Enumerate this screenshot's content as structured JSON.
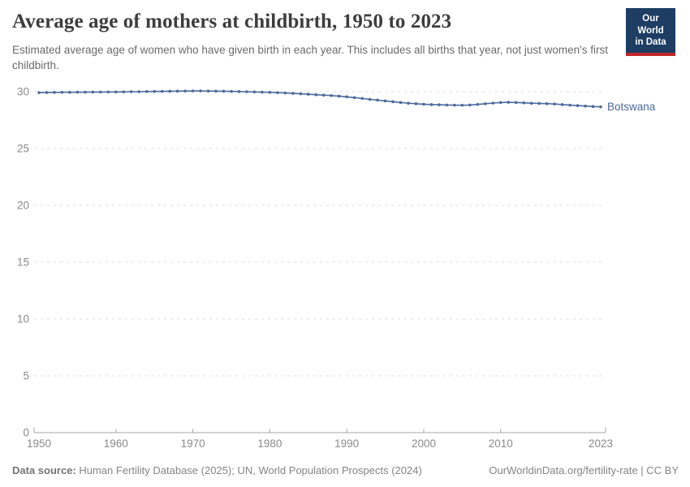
{
  "header": {
    "title": "Average age of mothers at childbirth, 1950 to 2023",
    "subtitle": "Estimated average age of women who have given birth in each year. This includes all births that year, not just women's first childbirth.",
    "logo": {
      "line1": "Our World",
      "line2": "in Data"
    }
  },
  "footer": {
    "datasource_label": "Data source:",
    "datasource_text": " Human Fertility Database (2025); UN, World Population Prospects (2024)",
    "license_text": "OurWorldinData.org/fertility-rate | CC BY"
  },
  "colors": {
    "line_blue": "#4C6A9C",
    "grid_gray": "#dddddd",
    "axis_gray": "#a5a5a5",
    "tick_text_gray": "#8b8b8b",
    "title_text": "#3d3d3d",
    "subtitle_text": "#6b6b6b",
    "logo_navy": "#1d3d63",
    "logo_red": "#c0282d"
  },
  "chart_data": {
    "type": "line",
    "title": "Average age of mothers at childbirth, 1950 to 2023",
    "xlabel": "",
    "ylabel": "",
    "xlim": [
      1950,
      2023
    ],
    "ylim": [
      0,
      30
    ],
    "x_ticks": [
      1950,
      1960,
      1970,
      1980,
      1990,
      2000,
      2010,
      2023
    ],
    "y_ticks": [
      0,
      5,
      10,
      15,
      20,
      25,
      30
    ],
    "grid": "horizontal-dashed",
    "legend": "end-of-line-label",
    "series": [
      {
        "name": "Botswana",
        "color": "#4C6A9C",
        "x": [
          1950,
          1951,
          1952,
          1953,
          1954,
          1955,
          1956,
          1957,
          1958,
          1959,
          1960,
          1961,
          1962,
          1963,
          1964,
          1965,
          1966,
          1967,
          1968,
          1969,
          1970,
          1971,
          1972,
          1973,
          1974,
          1975,
          1976,
          1977,
          1978,
          1979,
          1980,
          1981,
          1982,
          1983,
          1984,
          1985,
          1986,
          1987,
          1988,
          1989,
          1990,
          1991,
          1992,
          1993,
          1994,
          1995,
          1996,
          1997,
          1998,
          1999,
          2000,
          2001,
          2002,
          2003,
          2004,
          2005,
          2006,
          2007,
          2008,
          2009,
          2010,
          2011,
          2012,
          2013,
          2014,
          2015,
          2016,
          2017,
          2018,
          2019,
          2020,
          2021,
          2022,
          2023
        ],
        "values": [
          29.92,
          29.93,
          29.94,
          29.95,
          29.95,
          29.96,
          29.96,
          29.97,
          29.97,
          29.98,
          29.98,
          29.99,
          30.0,
          30.0,
          30.01,
          30.02,
          30.03,
          30.04,
          30.05,
          30.06,
          30.07,
          30.07,
          30.06,
          30.05,
          30.04,
          30.03,
          30.01,
          30.0,
          29.98,
          29.96,
          29.95,
          29.92,
          29.89,
          29.86,
          29.82,
          29.78,
          29.74,
          29.7,
          29.66,
          29.61,
          29.55,
          29.48,
          29.41,
          29.33,
          29.26,
          29.19,
          29.12,
          29.05,
          28.99,
          28.94,
          28.9,
          28.87,
          28.85,
          28.83,
          28.82,
          28.81,
          28.83,
          28.88,
          28.94,
          29.0,
          29.05,
          29.07,
          29.05,
          29.02,
          28.99,
          28.97,
          28.95,
          28.92,
          28.87,
          28.82,
          28.78,
          28.74,
          28.7,
          28.67
        ]
      }
    ]
  }
}
